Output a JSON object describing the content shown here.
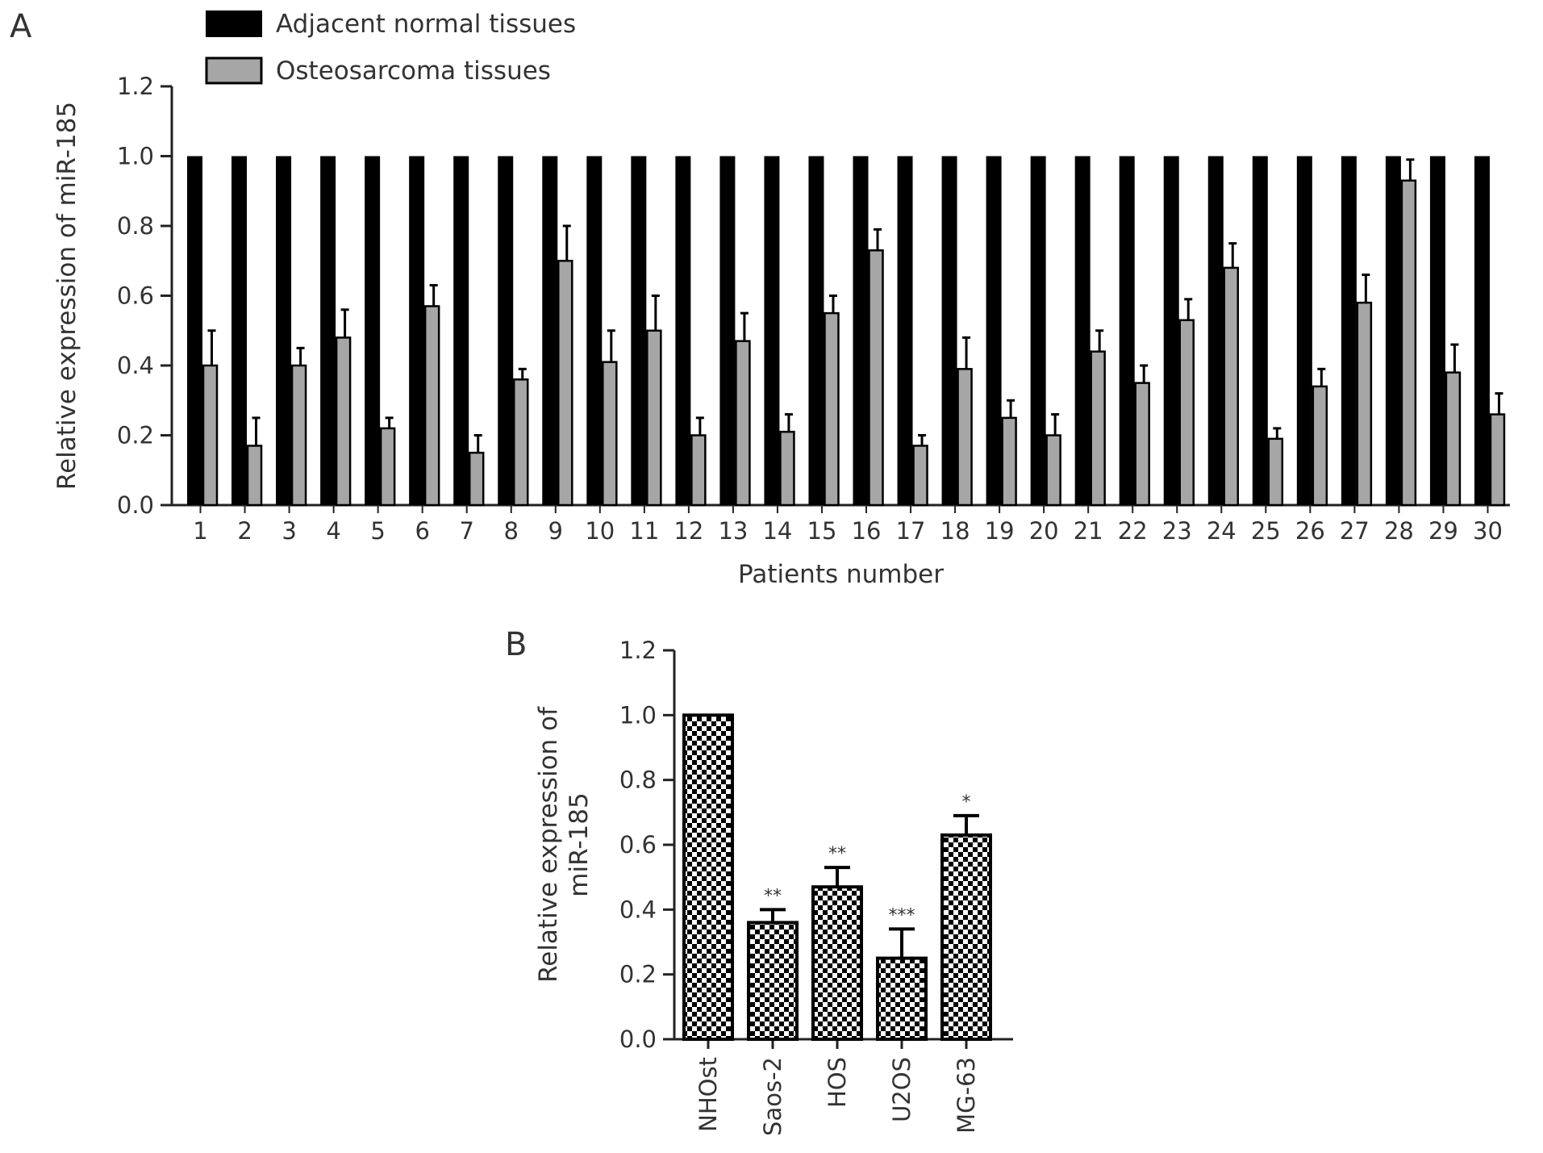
{
  "chart_data": [
    {
      "panel": "A",
      "type": "bar",
      "xlabel": "Patients number",
      "ylabel": "Relative expression of miR-185",
      "ylim": [
        0,
        1.2
      ],
      "y_ticks": [
        "0.0",
        "0.2",
        "0.4",
        "0.6",
        "0.8",
        "1.0",
        "1.2"
      ],
      "categories": [
        "1",
        "2",
        "3",
        "4",
        "5",
        "6",
        "7",
        "8",
        "9",
        "10",
        "11",
        "12",
        "13",
        "14",
        "15",
        "16",
        "17",
        "18",
        "19",
        "20",
        "21",
        "22",
        "23",
        "24",
        "25",
        "26",
        "27",
        "28",
        "29",
        "30"
      ],
      "legend_position": "top-left",
      "series": [
        {
          "name": "Adjacent normal tissues",
          "color": "#000000",
          "values": [
            1,
            1,
            1,
            1,
            1,
            1,
            1,
            1,
            1,
            1,
            1,
            1,
            1,
            1,
            1,
            1,
            1,
            1,
            1,
            1,
            1,
            1,
            1,
            1,
            1,
            1,
            1,
            1,
            1,
            1
          ]
        },
        {
          "name": "Osteosarcoma tissues",
          "color": "#a6a6a6",
          "values": [
            0.4,
            0.17,
            0.4,
            0.48,
            0.22,
            0.57,
            0.15,
            0.36,
            0.7,
            0.41,
            0.5,
            0.2,
            0.47,
            0.21,
            0.55,
            0.73,
            0.17,
            0.39,
            0.25,
            0.2,
            0.44,
            0.35,
            0.53,
            0.68,
            0.19,
            0.34,
            0.58,
            0.93,
            0.38,
            0.26
          ],
          "errors": [
            0.1,
            0.08,
            0.05,
            0.08,
            0.03,
            0.06,
            0.05,
            0.03,
            0.1,
            0.09,
            0.1,
            0.05,
            0.08,
            0.05,
            0.05,
            0.06,
            0.03,
            0.09,
            0.05,
            0.06,
            0.06,
            0.05,
            0.06,
            0.07,
            0.03,
            0.05,
            0.08,
            0.06,
            0.08,
            0.06
          ]
        }
      ]
    },
    {
      "panel": "B",
      "type": "bar",
      "xlabel": "",
      "ylabel": "Relative expression of\nmiR-185",
      "ylim": [
        0,
        1.2
      ],
      "y_ticks": [
        "0.0",
        "0.2",
        "0.4",
        "0.6",
        "0.8",
        "1.0",
        "1.2"
      ],
      "categories": [
        "NHOst",
        "Saos-2",
        "HOS",
        "U2OS",
        "MG-63"
      ],
      "values": [
        1.0,
        0.36,
        0.47,
        0.25,
        0.63
      ],
      "errors": [
        0,
        0.04,
        0.06,
        0.09,
        0.06
      ],
      "significance": [
        "",
        "**",
        "**",
        "***",
        "*"
      ],
      "pattern": "checkerboard"
    }
  ]
}
